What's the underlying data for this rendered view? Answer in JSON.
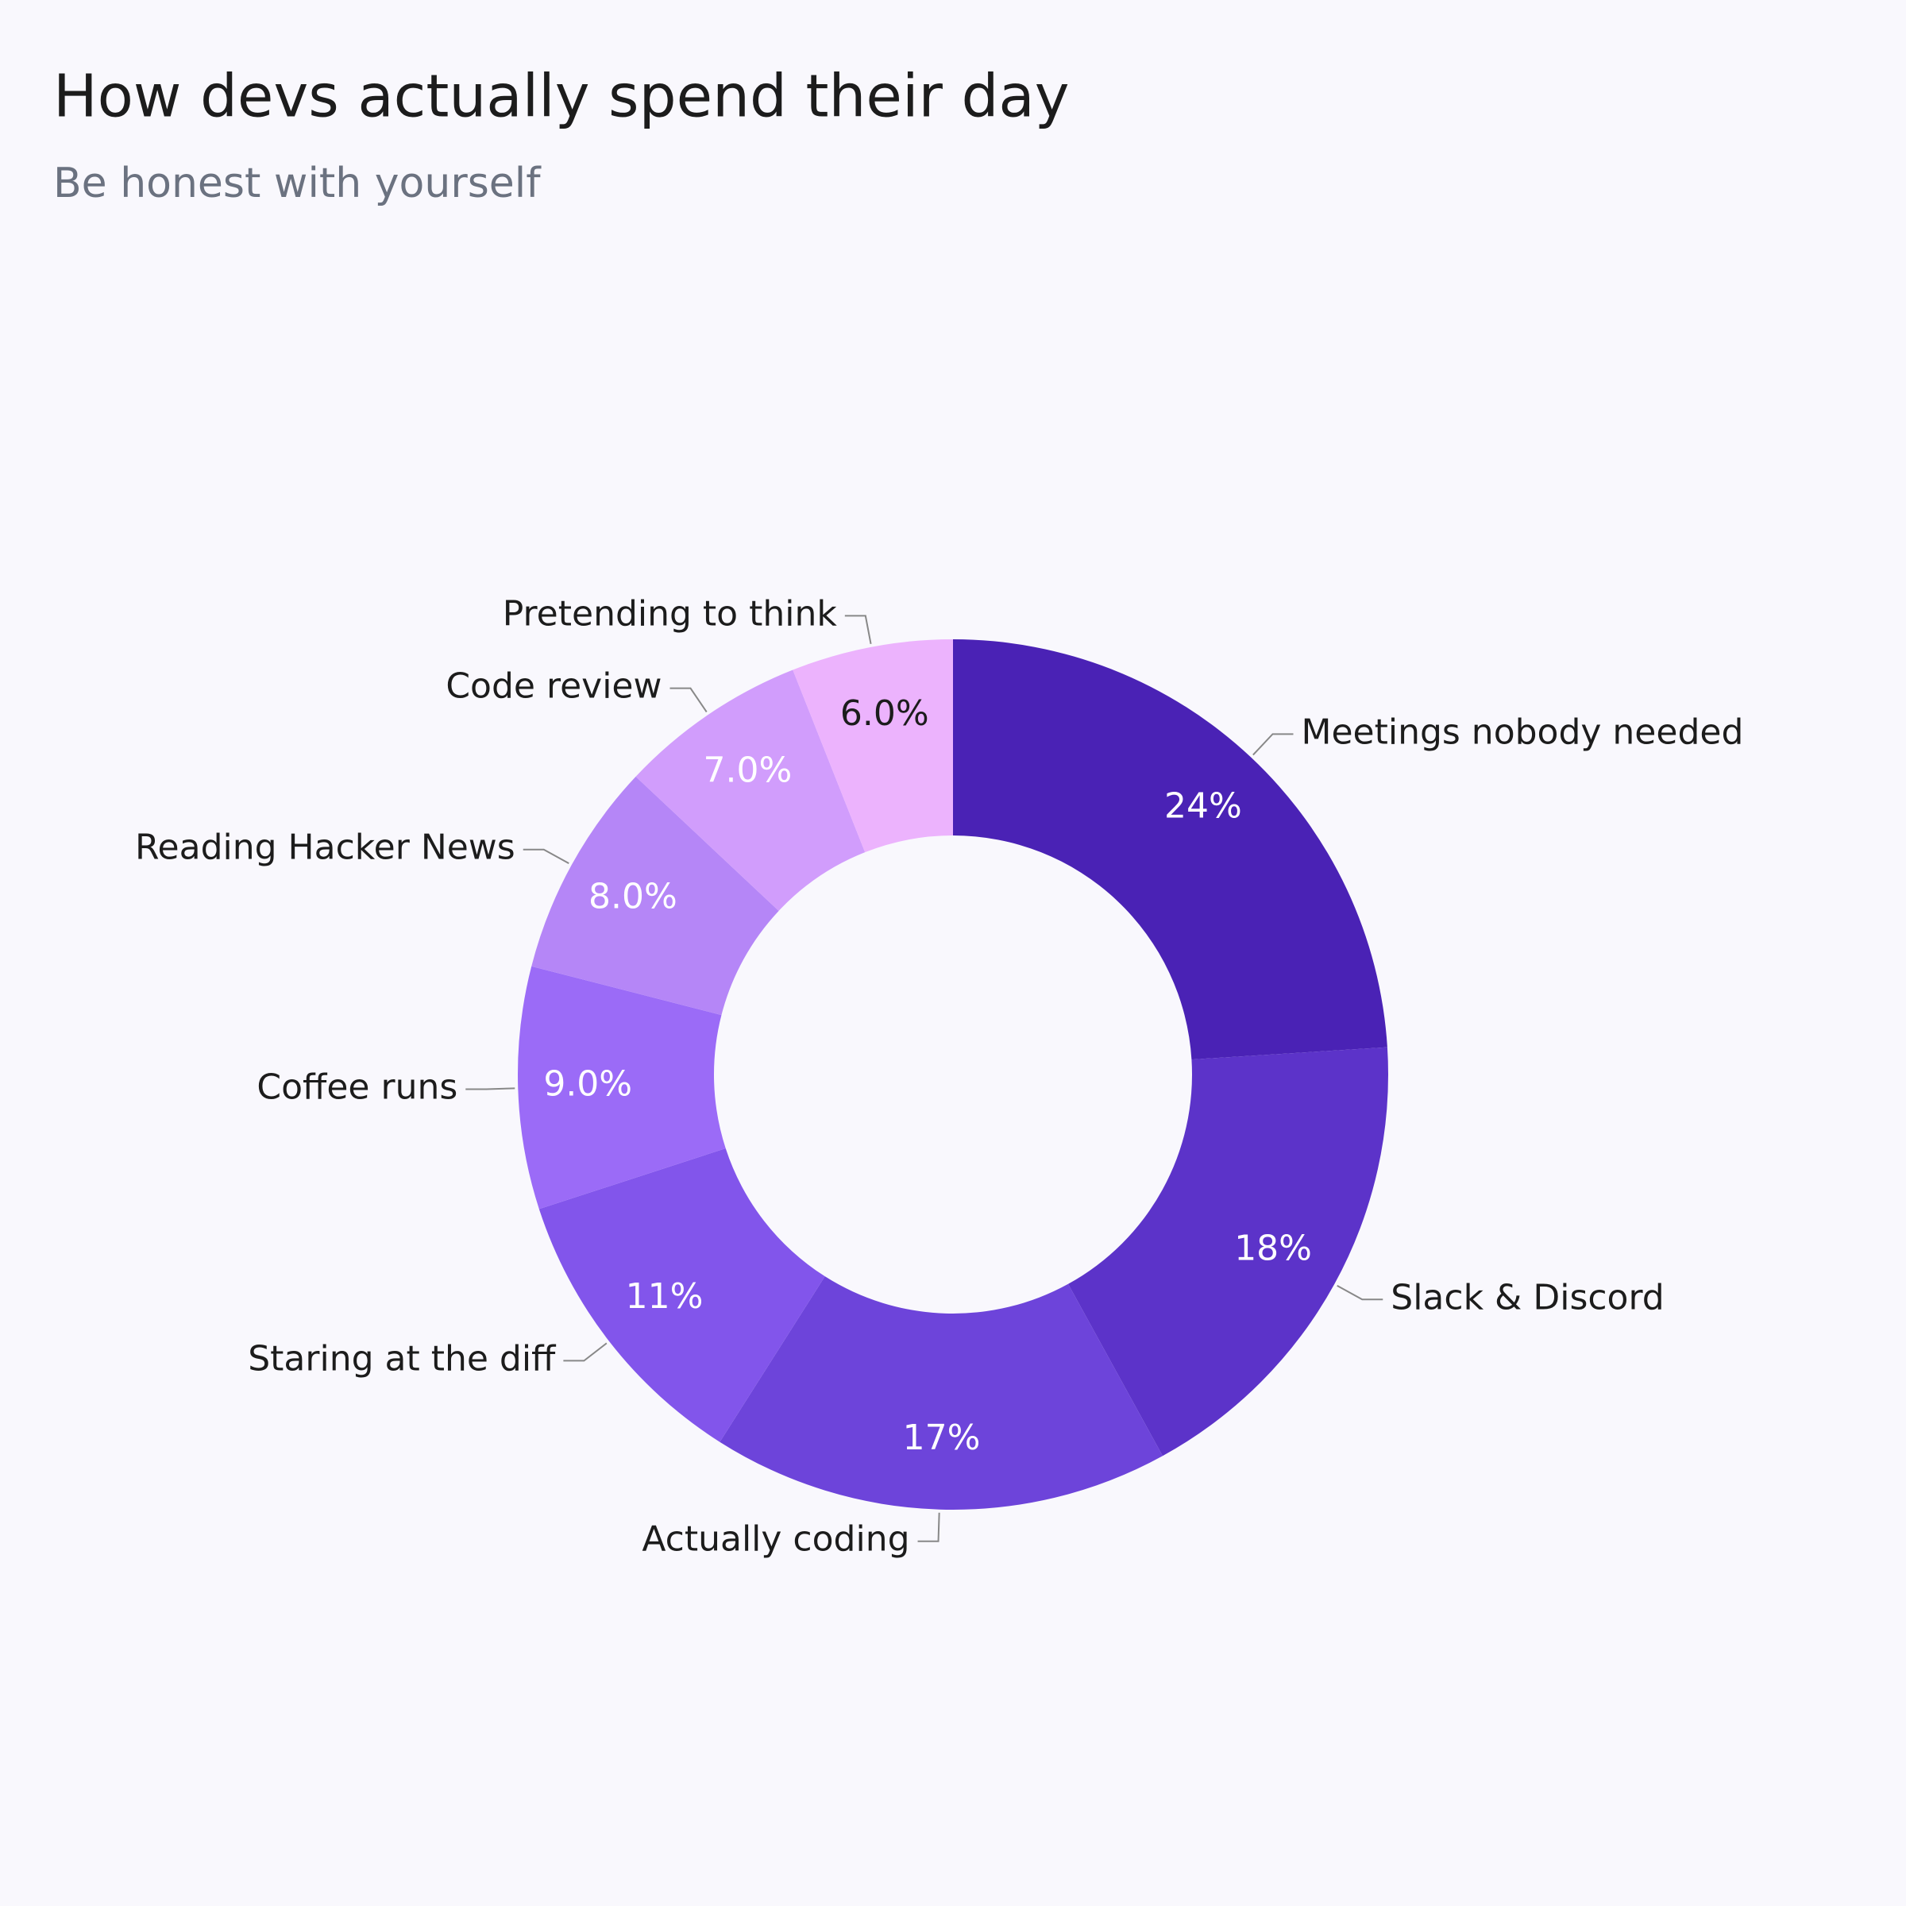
{
  "chart_data": {
    "type": "pie",
    "title": "How devs actually spend their day",
    "subtitle": "Be honest with yourself",
    "categories": [
      "Meetings nobody needed",
      "Slack & Discord",
      "Actually coding",
      "Staring at the diff",
      "Coffee runs",
      "Reading Hacker News",
      "Code review",
      "Pretending to think"
    ],
    "values": [
      24,
      18,
      17,
      11,
      9,
      8,
      7,
      6
    ],
    "value_labels": [
      "24%",
      "18%",
      "17%",
      "11%",
      "9.0%",
      "8.0%",
      "7.0%",
      "6.0%"
    ],
    "colors": [
      "#4a22b5",
      "#5c33c9",
      "#6d44da",
      "#8255eb",
      "#9b6bf7",
      "#b586f7",
      "#d19dfc",
      "#ecb3fd"
    ]
  }
}
